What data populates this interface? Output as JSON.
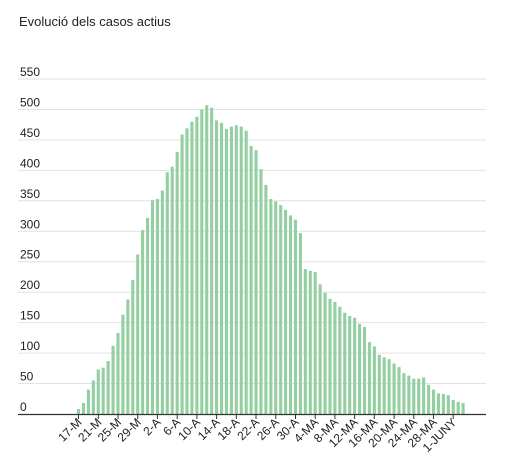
{
  "chart_data": {
    "type": "bar",
    "title": "Evolució dels casos actius",
    "xlabel": "",
    "ylabel": "",
    "ylim": [
      0,
      550
    ],
    "yticks": [
      0,
      50,
      100,
      150,
      200,
      250,
      300,
      350,
      400,
      450,
      500,
      550
    ],
    "grid": true,
    "legend": "none",
    "bar_color": "#93cfa1",
    "grid_color": "#e2e2e2",
    "axis_color": "#333333",
    "tick_labels": [
      "17-M",
      "21-M",
      "25-M",
      "29-M",
      "2-A",
      "6-A",
      "10-A",
      "14-A",
      "18-A",
      "22-A",
      "26-A",
      "30-A",
      "4-MA",
      "8-MA",
      "12-MA",
      "16-MA",
      "20-MA",
      "24-MA",
      "28-MA",
      "1-JUNY"
    ],
    "values": [
      8,
      18,
      40,
      55,
      73,
      76,
      87,
      112,
      133,
      163,
      188,
      220,
      262,
      302,
      322,
      351,
      353,
      367,
      397,
      406,
      430,
      459,
      469,
      480,
      488,
      500,
      507,
      503,
      482,
      478,
      468,
      472,
      474,
      472,
      465,
      440,
      433,
      402,
      376,
      353,
      349,
      343,
      335,
      326,
      319,
      297,
      238,
      235,
      233,
      213,
      199,
      189,
      184,
      176,
      166,
      161,
      158,
      148,
      143,
      118,
      111,
      97,
      93,
      90,
      83,
      77,
      67,
      63,
      58,
      58,
      60,
      48,
      40,
      34,
      33,
      31,
      23,
      20,
      18
    ]
  }
}
